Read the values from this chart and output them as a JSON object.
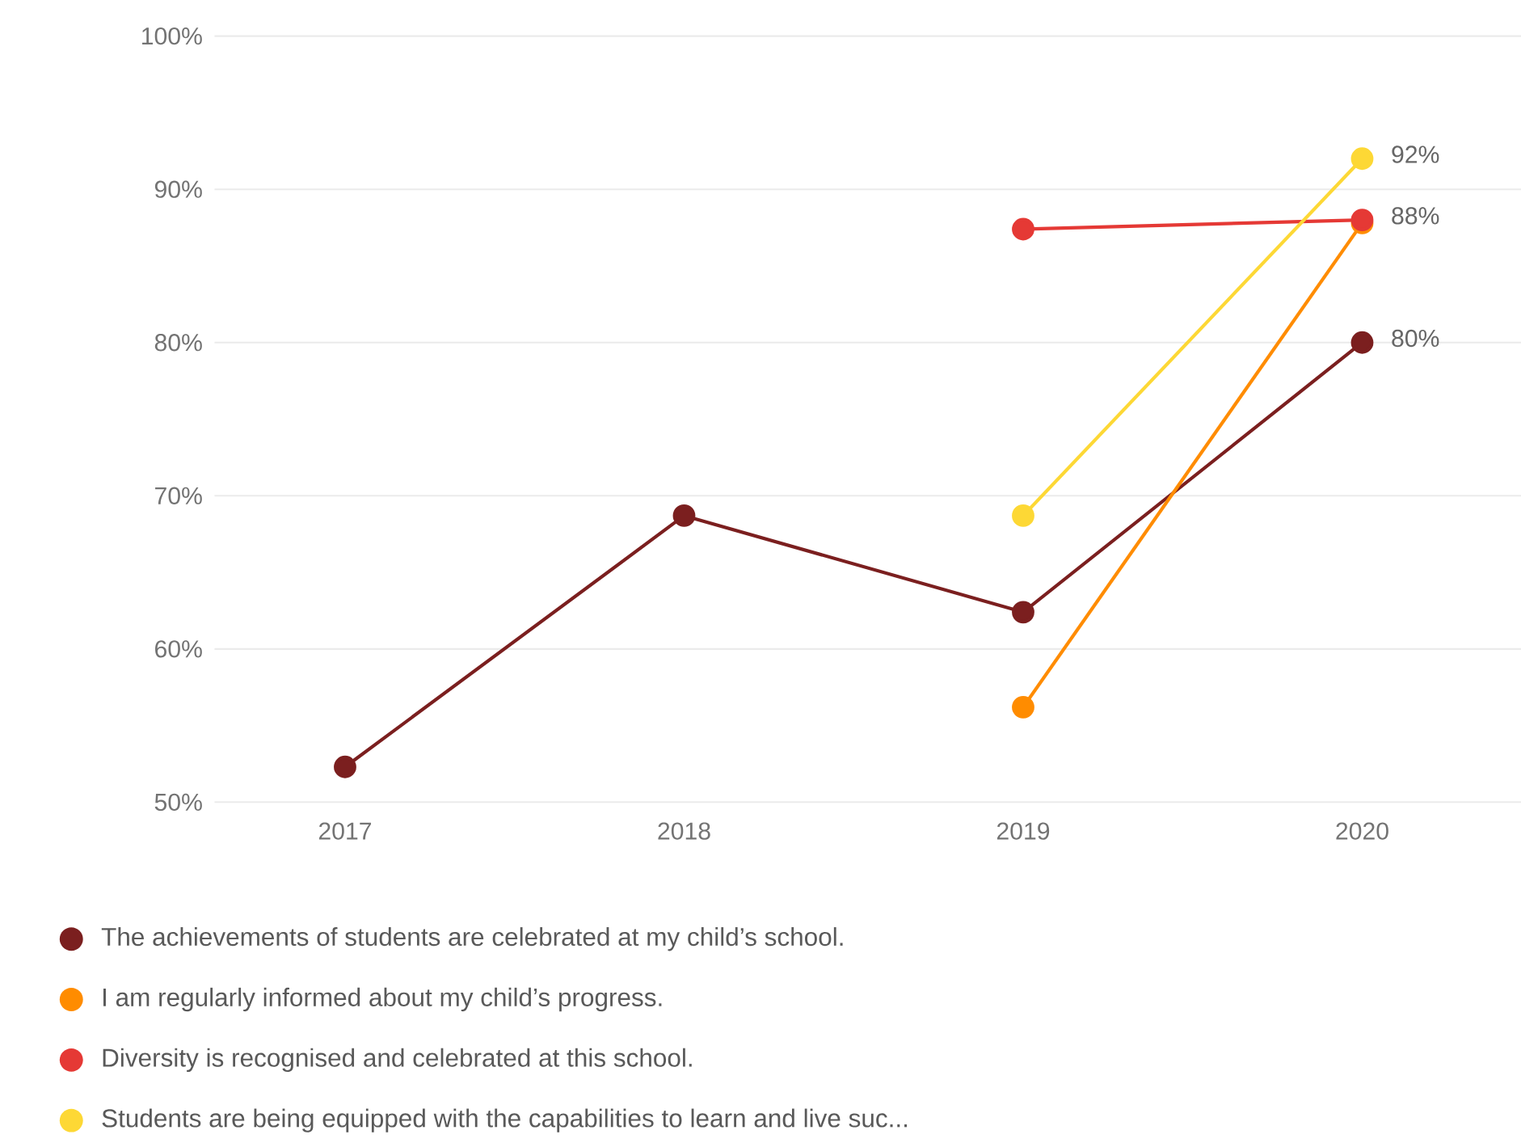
{
  "chart_data": {
    "type": "line",
    "categories": [
      "2017",
      "2018",
      "2019",
      "2020"
    ],
    "series": [
      {
        "name": "The achievements of students are celebrated at my child’s school.",
        "color": "#7b1f1f",
        "values": [
          52.3,
          68.7,
          62.4,
          80
        ],
        "value_labels": [
          null,
          null,
          null,
          "80%"
        ]
      },
      {
        "name": "I am regularly informed about my child’s progress.",
        "color": "#ff8c00",
        "values": [
          null,
          null,
          56.2,
          87.8
        ],
        "value_labels": [
          null,
          null,
          null,
          null
        ]
      },
      {
        "name": "Diversity is recognised and celebrated at this school.",
        "color": "#e53935",
        "values": [
          null,
          null,
          87.4,
          88
        ],
        "value_labels": [
          null,
          null,
          null,
          "88%"
        ]
      },
      {
        "name": "Students are being equipped with the capabilities to learn and live suc...",
        "color": "#fdd835",
        "values": [
          null,
          null,
          68.7,
          92
        ],
        "value_labels": [
          null,
          null,
          null,
          "92%"
        ]
      }
    ],
    "ylim": [
      50,
      100
    ],
    "yticks": [
      {
        "value": 50,
        "label": "50%"
      },
      {
        "value": 60,
        "label": "60%"
      },
      {
        "value": 70,
        "label": "70%"
      },
      {
        "value": 80,
        "label": "80%"
      },
      {
        "value": 90,
        "label": "90%"
      },
      {
        "value": 100,
        "label": "100%"
      }
    ],
    "grid": "y",
    "legend": "bottom",
    "marker": "circle",
    "line_style": "solid"
  }
}
